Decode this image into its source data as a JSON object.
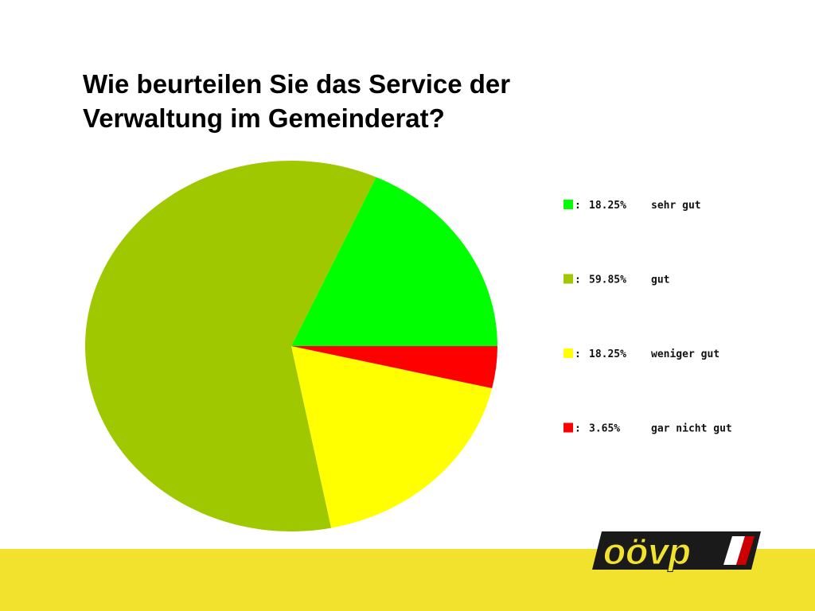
{
  "title": "Wie beurteilen Sie das Service der Verwaltung im Gemeinderat?",
  "logo_text": "oövp",
  "chart_data": {
    "type": "pie",
    "title": "Wie beurteilen Sie das Service der Verwaltung im Gemeinderat?",
    "legend_position": "right",
    "slices": [
      {
        "label": "sehr gut",
        "value": 18.25,
        "display": "18.25%",
        "color": "#00ff00"
      },
      {
        "label": "gut",
        "value": 59.85,
        "display": "59.85%",
        "color": "#9fc800"
      },
      {
        "label": "weniger gut",
        "value": 18.25,
        "display": "18.25%",
        "color": "#ffff00"
      },
      {
        "label": "gar nicht gut",
        "value": 3.65,
        "display": "3.65%",
        "color": "#ff0000"
      }
    ]
  }
}
